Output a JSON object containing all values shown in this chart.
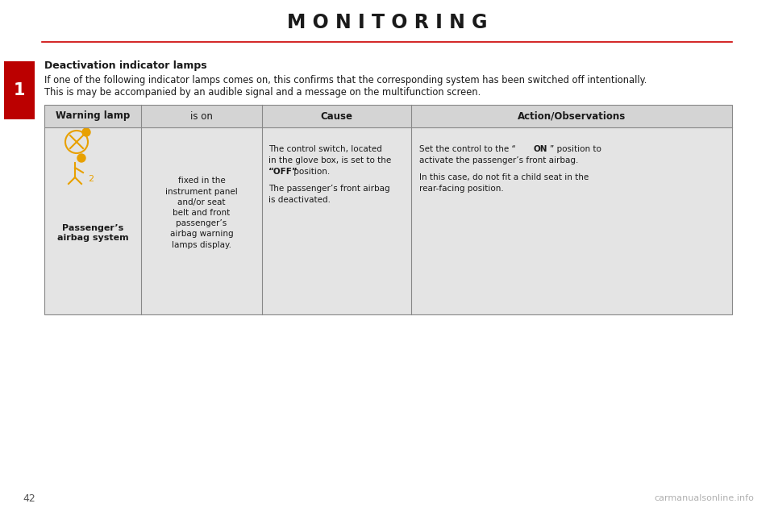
{
  "title": "M O N I T O R I N G",
  "title_fontsize": 17,
  "title_color": "#1a1a1a",
  "red_line_color": "#cc0000",
  "background_color": "#ffffff",
  "section_label": "1",
  "section_label_bg": "#bb0000",
  "section_label_color": "#ffffff",
  "heading": "Deactivation indicator lamps",
  "para1": "If one of the following indicator lamps comes on, this confirms that the corresponding system has been switched off intentionally.",
  "para2": "This is may be accompanied by an audible signal and a message on the multifunction screen.",
  "page_number": "42",
  "watermark": "carmanualsonline.info",
  "table_header_bg": "#d4d4d4",
  "table_cell_bg": "#e4e4e4",
  "table_border_color": "#888888",
  "col_headers": [
    "Warning lamp",
    "is on",
    "Cause",
    "Action/Observations"
  ],
  "icon_color": "#e8a000",
  "row_is_on": "fixed in the\ninstrument panel\nand/or seat\nbelt and front\npassenger’s\nairbag warning\nlamps display.",
  "row_warning_bold": "Passenger’s\nairbag system",
  "row_cause_p1_a": "The control switch, located",
  "row_cause_p1_b": "in the glove box, is set to the",
  "row_cause_p1_c_bold": "“OFF”",
  "row_cause_p1_c_rest": " position.",
  "row_cause_p2_a": "The passenger’s front airbag",
  "row_cause_p2_b": "is deactivated.",
  "row_action_a": "Set the control to the “",
  "row_action_b": "ON",
  "row_action_c": "” position to",
  "row_action_d": "activate the passenger’s front airbag.",
  "row_action_e": "In this case, do not fit a child seat in the",
  "row_action_f": "rear-facing position."
}
